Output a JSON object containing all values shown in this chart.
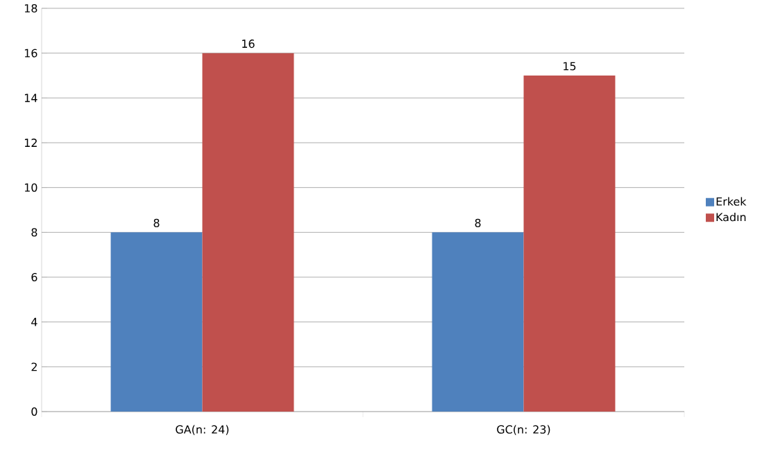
{
  "chart_data": {
    "type": "bar",
    "categories": [
      "GA(n: 24)",
      "GC(n: 23)"
    ],
    "series": [
      {
        "name": "Erkek",
        "color": "#4f81bd",
        "values": [
          8,
          8
        ]
      },
      {
        "name": "Kadın",
        "color": "#c0504d",
        "values": [
          16,
          15
        ]
      }
    ],
    "ylim": [
      0,
      18
    ],
    "yticks": [
      0,
      2,
      4,
      6,
      8,
      10,
      12,
      14,
      16,
      18
    ],
    "grid": "y",
    "legend": "right",
    "data_labels": true
  }
}
